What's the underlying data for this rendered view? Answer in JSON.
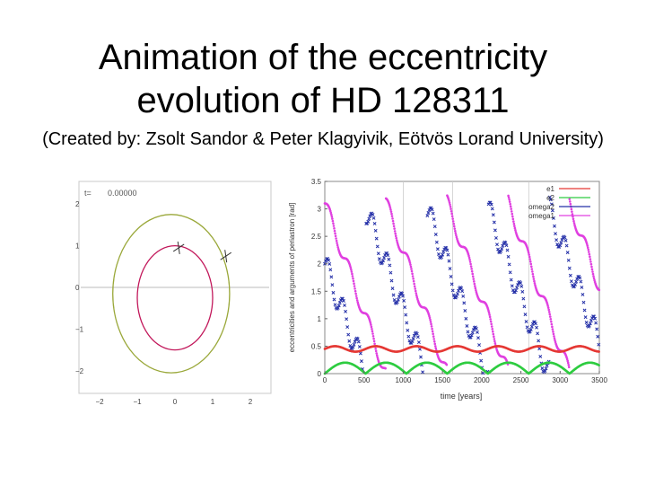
{
  "slide": {
    "title_line1": "Animation of the eccentricity",
    "title_line2": "evolution of HD 128311",
    "subtitle": "(Created by: Zsolt Sandor & Peter Klagyivik, Eötvös Lorand University)"
  },
  "chart_data": [
    {
      "type": "scatter",
      "title": "",
      "time_label": "t=",
      "time_value": "0.00000",
      "xlim": [
        -2.5,
        2.5
      ],
      "ylim": [
        -2.5,
        2.5
      ],
      "x_ticks": [
        "−2",
        "−1",
        "0",
        "1",
        "2"
      ],
      "y_ticks": [
        "2",
        "1",
        "0",
        "−1",
        "−2"
      ],
      "grid": "axes-only",
      "orbits": [
        {
          "name": "inner",
          "color": "#c2185b",
          "semi_axis_x": 1.0,
          "semi_axis_y": 1.25,
          "center": [
            0.0,
            -0.25
          ]
        },
        {
          "name": "outer",
          "color": "#9aa83a",
          "semi_axis_x": 1.55,
          "semi_axis_y": 1.9,
          "center": [
            -0.1,
            -0.15
          ]
        }
      ],
      "planets": [
        {
          "name": "planet1",
          "x": 0.1,
          "y": 0.95
        },
        {
          "name": "planet2",
          "x": 1.35,
          "y": 0.75
        }
      ]
    },
    {
      "type": "scatter",
      "title": "",
      "xlabel": "time [years]",
      "ylabel": "eccentricities and arguments of periastron [rad]",
      "xlim": [
        0,
        3500
      ],
      "ylim": [
        0,
        3.5
      ],
      "x_ticks": [
        "0",
        "500",
        "1000",
        "1500",
        "2000",
        "2500",
        "3000",
        "3500"
      ],
      "y_ticks": [
        "0",
        "0.5",
        "1",
        "1.5",
        "2",
        "2.5",
        "3",
        "3.5"
      ],
      "legend_position": "top-right",
      "series": [
        {
          "name": "e1",
          "color": "#e53935",
          "period": 520,
          "base": 0.45,
          "amplitude": 0.05
        },
        {
          "name": "e2",
          "color": "#2ecc40",
          "period": 520,
          "base": 0.0,
          "amplitude": 0.2
        },
        {
          "name": "omega2",
          "color": "#2530a8",
          "period": 780
        },
        {
          "name": "omega1",
          "color": "#e040e0",
          "period": 780
        }
      ]
    }
  ]
}
